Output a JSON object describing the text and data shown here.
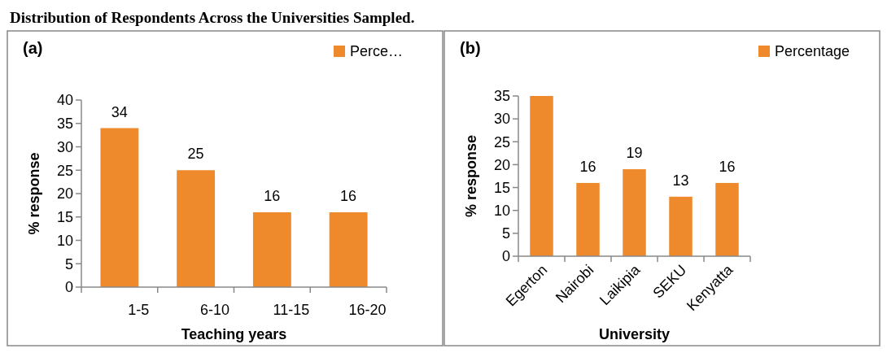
{
  "chart_data": [
    {
      "type": "bar",
      "title": "Distribution of Respondents Across the Universities Sampled.",
      "subtitle": "(a)",
      "xlabel": "Teaching years",
      "ylabel": "% response",
      "categories": [
        "1-5",
        "6-10",
        "11-15",
        "16-20"
      ],
      "series": [
        {
          "name": "Perce…",
          "color": "#ee8a2c",
          "values": [
            34,
            25,
            16,
            16
          ]
        }
      ],
      "ylim": [
        0,
        40
      ],
      "yticks": [
        0,
        5,
        10,
        15,
        20,
        25,
        30,
        35,
        40
      ],
      "data_labels": true,
      "legend": "top right"
    },
    {
      "type": "bar",
      "subtitle": "(b)",
      "xlabel": "University",
      "ylabel": "% response",
      "categories": [
        "Egerton",
        "Nairobi",
        "Laikipia",
        "SEKU",
        "Kenyatta"
      ],
      "series": [
        {
          "name": "Percentage",
          "color": "#ee8a2c",
          "values": [
            35,
            16,
            19,
            13,
            16
          ],
          "value_labels": [
            null,
            "16",
            "19",
            "13",
            "16"
          ]
        }
      ],
      "ylim": [
        0,
        35
      ],
      "yticks": [
        0,
        5,
        10,
        15,
        20,
        25,
        30,
        35
      ],
      "legend": "top right"
    }
  ]
}
